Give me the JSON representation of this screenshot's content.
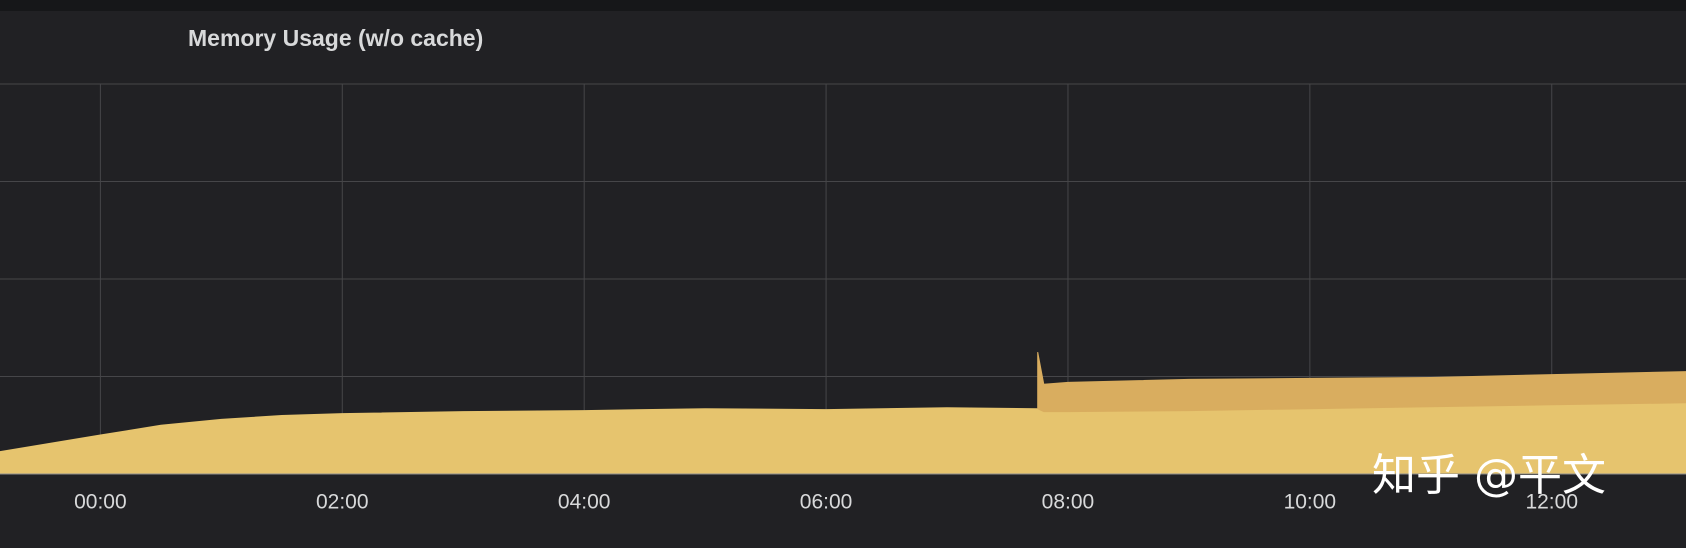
{
  "chart_data": {
    "type": "area",
    "title": "Memory Usage (w/o cache)",
    "watermark": "知乎 @平文",
    "x": [
      -0.83,
      0,
      0.5,
      1,
      1.5,
      2,
      3,
      4,
      5,
      6,
      7,
      7.75,
      7.8,
      8,
      9,
      10,
      11,
      12,
      13.11
    ],
    "series": [
      {
        "color": "#e6c46e",
        "values": [
          0.23,
          0.4,
          0.5,
          0.56,
          0.6,
          0.62,
          0.64,
          0.65,
          0.67,
          0.66,
          0.68,
          0.67,
          0.64,
          0.64,
          0.65,
          0.67,
          0.69,
          0.71,
          0.73
        ]
      },
      {
        "color": "#d9ad5f",
        "values": [
          null,
          null,
          null,
          null,
          null,
          null,
          null,
          null,
          null,
          null,
          null,
          0.58,
          0.28,
          0.3,
          0.32,
          0.31,
          0.3,
          0.31,
          0.32
        ]
      }
    ],
    "stacked": true,
    "xlim": [
      -0.83,
      13.11
    ],
    "xticks": [
      {
        "value": 0,
        "label": "00:00"
      },
      {
        "value": 2,
        "label": "02:00"
      },
      {
        "value": 4,
        "label": "04:00"
      },
      {
        "value": 6,
        "label": "06:00"
      },
      {
        "value": 8,
        "label": "08:00"
      },
      {
        "value": 10,
        "label": "10:00"
      },
      {
        "value": 12,
        "label": "12:00"
      }
    ],
    "ylim": [
      0,
      4
    ],
    "yticks": [
      0,
      1,
      2,
      3,
      4
    ],
    "show_ytick_labels": false,
    "grid": true
  }
}
